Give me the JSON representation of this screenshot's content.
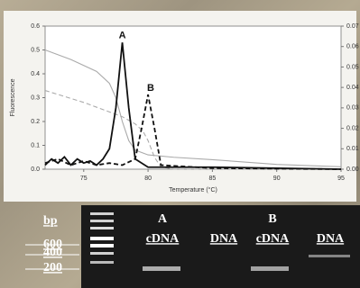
{
  "chart_data": {
    "type": "line",
    "ylabel": "Fluorescence",
    "xlabel": "Temperature (°C)",
    "xlim": [
      72,
      95
    ],
    "xticks": [
      75,
      80,
      85,
      90,
      95
    ],
    "ylim": [
      0,
      0.6
    ],
    "yticks": [
      {
        "value": 0,
        "label": "0.0"
      },
      0.1,
      0.2,
      0.3,
      0.4,
      0.5,
      0.6
    ],
    "y2lim": [
      0,
      0.07
    ],
    "y2ticks": [
      {
        "value": 0,
        "label": "0.00"
      },
      {
        "value": 0.01,
        "label": "0.01"
      },
      {
        "value": 0.02,
        "label": "0.02"
      },
      {
        "value": 0.03,
        "label": "0.03"
      },
      {
        "value": 0.04,
        "label": "0.04"
      },
      {
        "value": 0.05,
        "label": "0.05"
      },
      {
        "value": 0.06,
        "label": "0.06"
      },
      {
        "value": 0.07,
        "label": "0.07"
      }
    ],
    "annotations": [
      {
        "text": "A",
        "x": 78,
        "y": 0.56
      },
      {
        "text": "B",
        "x": 80.2,
        "y": 0.34
      }
    ],
    "series": [
      {
        "color": "#aaaaaa",
        "dash": false,
        "x": [
          72,
          74,
          76,
          77,
          77.5,
          78,
          78.5,
          79,
          80,
          82,
          85,
          90,
          95
        ],
        "values": [
          0.5,
          0.46,
          0.41,
          0.36,
          0.3,
          0.2,
          0.12,
          0.08,
          0.06,
          0.05,
          0.04,
          0.02,
          0.01
        ]
      },
      {
        "color": "#aaaaaa",
        "dash": true,
        "x": [
          72,
          75,
          78,
          79,
          79.6,
          80,
          80.5,
          81,
          82,
          95
        ],
        "values": [
          0.33,
          0.28,
          0.22,
          0.19,
          0.16,
          0.12,
          0.05,
          0.01,
          0.0,
          0.0
        ]
      },
      {
        "color": "#111111",
        "dash": false,
        "axis": "y2",
        "x": [
          72,
          72.5,
          73,
          73.5,
          74,
          74.5,
          75,
          75.5,
          76,
          76.5,
          77,
          77.5,
          78,
          78.5,
          79,
          80,
          85,
          95
        ],
        "values": [
          0.002,
          0.005,
          0.003,
          0.006,
          0.002,
          0.005,
          0.003,
          0.004,
          0.002,
          0.005,
          0.01,
          0.03,
          0.062,
          0.03,
          0.005,
          0.001,
          0.001,
          0.0
        ]
      },
      {
        "color": "#111111",
        "dash": true,
        "axis": "y2",
        "x": [
          72,
          73,
          74,
          75,
          76,
          77,
          78,
          79,
          79.5,
          80,
          80.5,
          81,
          85,
          95
        ],
        "values": [
          0.003,
          0.005,
          0.002,
          0.004,
          0.002,
          0.003,
          0.002,
          0.005,
          0.02,
          0.0365,
          0.02,
          0.002,
          0.0005,
          0.0
        ]
      }
    ]
  },
  "gel": {
    "size_label": "bp",
    "markers": [
      "600",
      "400",
      "200"
    ],
    "groups": [
      "A",
      "B"
    ],
    "lanes": [
      "cDNA",
      "DNA",
      "cDNA",
      "DNA"
    ]
  }
}
